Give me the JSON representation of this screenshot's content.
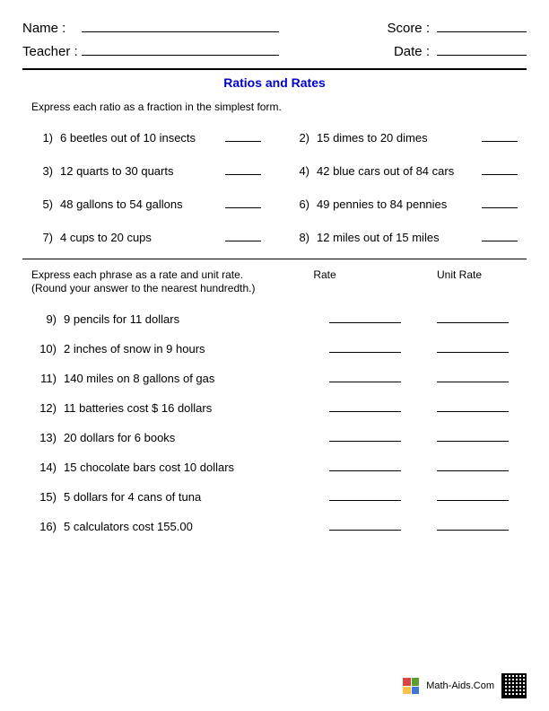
{
  "header": {
    "name_label": "Name :",
    "teacher_label": "Teacher :",
    "score_label": "Score :",
    "date_label": "Date :"
  },
  "title": "Ratios and Rates",
  "title_color": "#0000cc",
  "section1": {
    "instructions": "Express each ratio as a fraction in the simplest form.",
    "questions": [
      {
        "num": "1)",
        "text": "6 beetles out of 10 insects"
      },
      {
        "num": "2)",
        "text": "15 dimes to 20 dimes"
      },
      {
        "num": "3)",
        "text": "12 quarts to 30 quarts"
      },
      {
        "num": "4)",
        "text": "42 blue cars out of 84 cars"
      },
      {
        "num": "5)",
        "text": "48 gallons to 54 gallons"
      },
      {
        "num": "6)",
        "text": "49 pennies to 84 pennies"
      },
      {
        "num": "7)",
        "text": "4 cups to 20 cups"
      },
      {
        "num": "8)",
        "text": "12 miles out of 15 miles"
      }
    ]
  },
  "section2": {
    "instructions_line1": "Express each phrase as a rate and unit rate.",
    "instructions_line2": "(Round your answer to the nearest hundredth.)",
    "col1_header": "Rate",
    "col2_header": "Unit Rate",
    "questions": [
      {
        "num": "9)",
        "text": "9 pencils for 11 dollars"
      },
      {
        "num": "10)",
        "text": "2 inches of snow in 9 hours"
      },
      {
        "num": "11)",
        "text": "140 miles on 8 gallons of gas"
      },
      {
        "num": "12)",
        "text": "11 batteries cost $ 16 dollars"
      },
      {
        "num": "13)",
        "text": "20 dollars for 6 books"
      },
      {
        "num": "14)",
        "text": "15 chocolate bars cost 10 dollars"
      },
      {
        "num": "15)",
        "text": "5 dollars for 4 cans of tuna"
      },
      {
        "num": "16)",
        "text": "5 calculators cost 155.00"
      }
    ]
  },
  "footer": {
    "site": "Math-Aids.Com",
    "logo_colors": [
      "#d94545",
      "#5aa02c",
      "#f5c242",
      "#3c78d8"
    ]
  },
  "lines": {
    "name_line_width": 220,
    "teacher_line_width": 220,
    "score_line_width": 100,
    "date_line_width": 100
  }
}
